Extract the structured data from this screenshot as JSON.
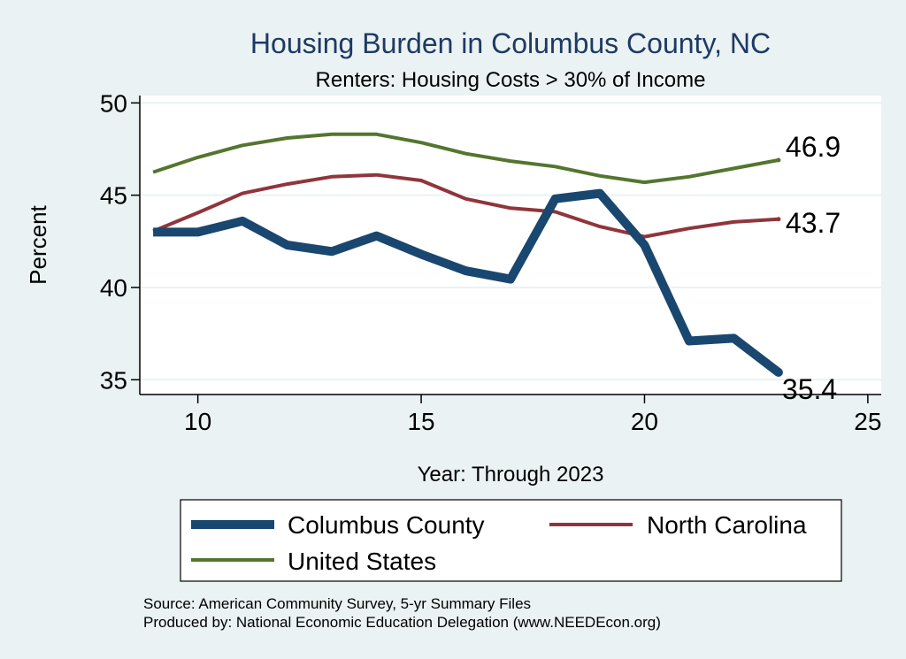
{
  "chart_data": {
    "type": "line",
    "title": "Housing Burden in Columbus County, NC",
    "subtitle": "Renters: Housing Costs > 30% of Income",
    "xlabel": "Year: Through 2023",
    "ylabel": "Percent",
    "xlim": [
      8.7,
      25.3
    ],
    "ylim": [
      34.2,
      50.4
    ],
    "xticks": [
      "10",
      "15",
      "20",
      "25"
    ],
    "yticks": [
      "35",
      "40",
      "45",
      "50"
    ],
    "grid": true,
    "x": [
      9,
      10,
      11,
      12,
      13,
      14,
      15,
      16,
      17,
      18,
      19,
      20,
      21,
      22,
      23
    ],
    "series": [
      {
        "name": "Columbus County",
        "color": "#1a476f",
        "end_label": "35.4",
        "values": [
          43.0,
          43.0,
          43.6,
          42.3,
          41.95,
          42.8,
          41.8,
          40.9,
          40.45,
          44.8,
          45.1,
          42.3,
          37.1,
          37.25,
          35.4
        ]
      },
      {
        "name": "North Carolina",
        "color": "#90353b",
        "end_label": "43.7",
        "values": [
          43.05,
          44.05,
          45.1,
          45.6,
          46.0,
          46.1,
          45.8,
          44.8,
          44.3,
          44.1,
          43.3,
          42.75,
          43.2,
          43.55,
          43.7
        ]
      },
      {
        "name": "United States",
        "color": "#55752f",
        "end_label": "46.9",
        "values": [
          46.25,
          47.05,
          47.7,
          48.1,
          48.3,
          48.3,
          47.85,
          47.25,
          46.85,
          46.55,
          46.05,
          45.7,
          46.0,
          46.45,
          46.9
        ]
      }
    ],
    "legend": {
      "placement": "bottom"
    },
    "note": "Source: American Community Survey, 5-yr Summary Files",
    "credit": "Produced by: National Economic Education Delegation (www.NEEDEcon.org)"
  }
}
